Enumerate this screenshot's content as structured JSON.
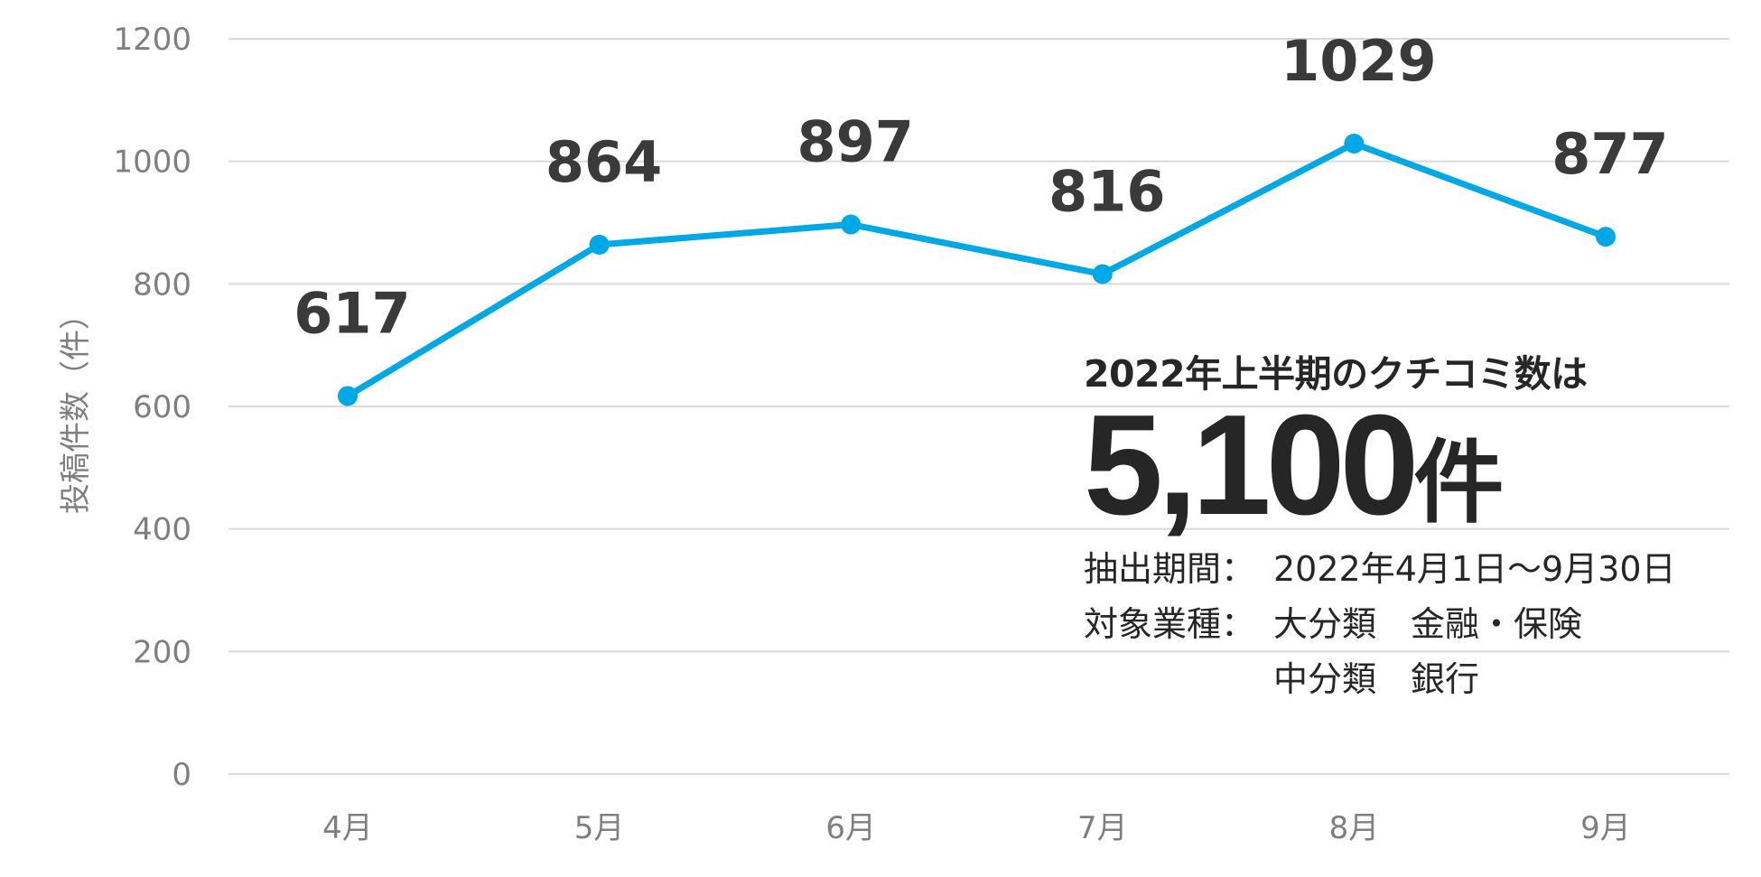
{
  "chart_data": {
    "type": "line",
    "categories": [
      "4月",
      "5月",
      "6月",
      "7月",
      "8月",
      "9月"
    ],
    "series": [
      {
        "values": [
          617,
          864,
          897,
          816,
          1029,
          877
        ],
        "color": "#00a8e6"
      }
    ],
    "data_labels": [
      "617",
      "864",
      "897",
      "816",
      "1029",
      "877"
    ],
    "ylabel": "投稿件数（件）",
    "ylim": [
      0,
      1200
    ],
    "yticks": [
      0,
      200,
      400,
      600,
      800,
      1000,
      1200
    ],
    "ytick_labels": [
      "0",
      "200",
      "400",
      "600",
      "800",
      "1000",
      "1200"
    ],
    "grid": true,
    "legend": "none"
  },
  "summary": {
    "heading": "2022年上半期のクチコミ数は",
    "total_number": "5,100",
    "total_unit": "件",
    "period_label": "抽出期間：",
    "period_value": "2022年4月1日～9月30日",
    "industry_label": "対象業種：",
    "industry_major": "大分類　金融・保険",
    "industry_minor": "中分類　銀行"
  },
  "colors": {
    "line": "#00a8e6",
    "grid": "#d9d9d9",
    "axis_text": "#7f7f7f",
    "label_text": "#3a3a3a"
  }
}
